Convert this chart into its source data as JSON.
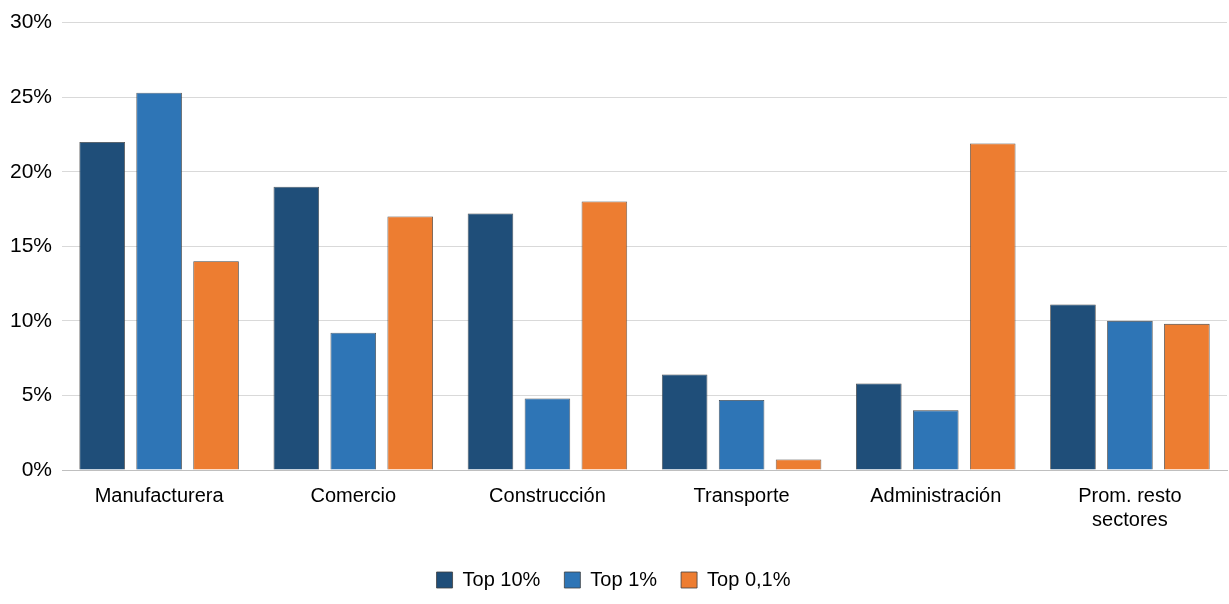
{
  "chart_data": {
    "type": "bar",
    "categories": [
      "Manufacturera",
      "Comercio",
      "Construcción",
      "Transporte",
      "Administración",
      "Prom. resto sectores"
    ],
    "series": [
      {
        "name": "Top 10%",
        "color": "#1f4e79",
        "values": [
          22,
          19,
          17.2,
          6.4,
          5.8,
          11.1
        ]
      },
      {
        "name": "Top 1%",
        "color": "#2e75b6",
        "values": [
          25.3,
          9.2,
          4.8,
          4.7,
          4,
          10
        ]
      },
      {
        "name": "Top 0,1%",
        "color": "#ed7d31",
        "values": [
          14,
          17,
          18,
          0.7,
          21.9,
          9.8
        ]
      }
    ],
    "ylim": [
      0,
      30
    ],
    "yticks": [
      {
        "value": 0,
        "label": "0%"
      },
      {
        "value": 5,
        "label": "5%"
      },
      {
        "value": 10,
        "label": "10%"
      },
      {
        "value": 15,
        "label": "15%"
      },
      {
        "value": 20,
        "label": "20%"
      },
      {
        "value": 25,
        "label": "25%"
      },
      {
        "value": 30,
        "label": "30%"
      }
    ],
    "grid": "y",
    "legend": "bottom"
  }
}
